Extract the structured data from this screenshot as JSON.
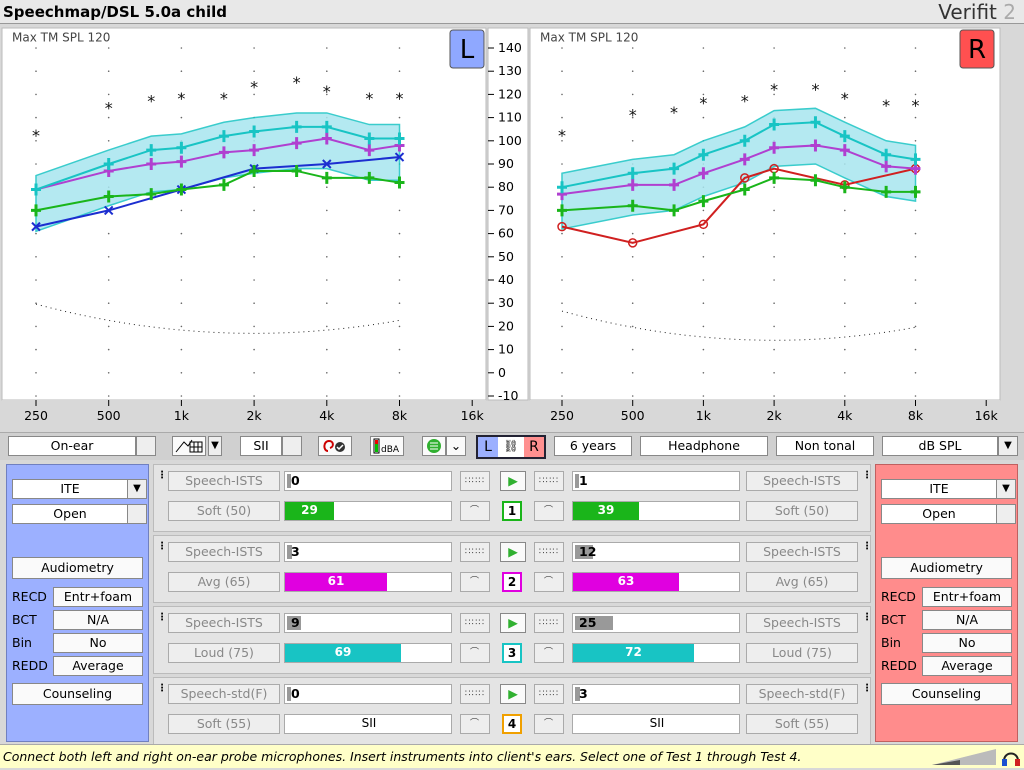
{
  "app_title": "Speechmap/DSL 5.0a child",
  "brand": {
    "name": "Verifit",
    "version": "2"
  },
  "charts": {
    "left": {
      "ear": "L",
      "max_label": "Max TM SPL 120"
    },
    "right": {
      "ear": "R",
      "max_label": "Max TM SPL 120"
    },
    "x_ticks": [
      "250",
      "500",
      "1k",
      "2k",
      "4k",
      "8k",
      "16k"
    ],
    "y_ticks": [
      "140",
      "130",
      "120",
      "110",
      "100",
      "90",
      "80",
      "70",
      "60",
      "50",
      "40",
      "30",
      "20",
      "10",
      "0",
      "-10"
    ]
  },
  "toolbar": {
    "mode": "On-ear",
    "sii_label": "SII",
    "dba_label": "dBA",
    "link_left": "L",
    "link_right": "R",
    "age": "6 years",
    "transducer": "Headphone",
    "tonal": "Non tonal",
    "units": "dB SPL"
  },
  "left_panel": {
    "style": "ITE",
    "vent": "Open",
    "audiometry": "Audiometry",
    "recd_label": "RECD",
    "recd_value": "Entr+foam",
    "bct_label": "BCT",
    "bct_value": "N/A",
    "bin_label": "Bin",
    "bin_value": "No",
    "redd_label": "REDD",
    "redd_value": "Average",
    "counseling": "Counseling"
  },
  "right_panel": {
    "style": "ITE",
    "vent": "Open",
    "audiometry": "Audiometry",
    "recd_label": "RECD",
    "recd_value": "Entr+foam",
    "bct_label": "BCT",
    "bct_value": "N/A",
    "bin_label": "Bin",
    "bin_value": "No",
    "redd_label": "REDD",
    "redd_value": "Average",
    "counseling": "Counseling"
  },
  "tests": [
    {
      "num": "1",
      "color": "#1ab51a",
      "stim_l": "Speech-ISTS",
      "stim_r": "Speech-ISTS",
      "level_l": "Soft (50)",
      "level_r": "Soft (50)",
      "top_l": "0",
      "top_r": "1",
      "val_l": "29",
      "val_r": "39",
      "fill_l": 0.29,
      "fill_r": 0.39
    },
    {
      "num": "2",
      "color": "#e000e0",
      "stim_l": "Speech-ISTS",
      "stim_r": "Speech-ISTS",
      "level_l": "Avg (65)",
      "level_r": "Avg (65)",
      "top_l": "3",
      "top_r": "12",
      "val_l": "61",
      "val_r": "63",
      "fill_l": 0.61,
      "fill_r": 0.63
    },
    {
      "num": "3",
      "color": "#18c4c4",
      "stim_l": "Speech-ISTS",
      "stim_r": "Speech-ISTS",
      "level_l": "Loud (75)",
      "level_r": "Loud (75)",
      "top_l": "9",
      "top_r": "25",
      "val_l": "69",
      "val_r": "72",
      "fill_l": 0.69,
      "fill_r": 0.72
    },
    {
      "num": "4",
      "color": "#f0a000",
      "stim_l": "Speech-std(F)",
      "stim_r": "Speech-std(F)",
      "level_l": "Soft (55)",
      "level_r": "Soft (55)",
      "top_l": "0",
      "top_r": "3",
      "val_l": "SII",
      "val_r": "SII",
      "fill_l": 0,
      "fill_r": 0
    }
  ],
  "status": "Connect both left and right on-ear probe microphones.  Insert instruments into client's ears.  Select one of Test 1 through Test 4.",
  "chart_data": [
    {
      "type": "line",
      "title": "Max TM SPL 120",
      "ear": "left",
      "x": [
        250,
        500,
        750,
        1000,
        1500,
        2000,
        3000,
        4000,
        6000,
        8000
      ],
      "ylim": [
        -10,
        140
      ],
      "series": [
        {
          "name": "",
          "color": "#1c2ed0",
          "x": [
            250,
            500,
            1000,
            2000,
            4000,
            8000
          ],
          "values": [
            63,
            70,
            79,
            88,
            90,
            93
          ]
        },
        {
          "name": "",
          "color": "#111111",
          "x": [
            250,
            500,
            750,
            1000,
            1500,
            2000,
            3000,
            4000,
            6000,
            8000
          ],
          "values": [
            102,
            114,
            117,
            118,
            118,
            123,
            125,
            121,
            118,
            118
          ]
        },
        {
          "name": "",
          "color": "#1ab51a",
          "x": [
            250,
            500,
            750,
            1000,
            1500,
            2000,
            3000,
            4000,
            6000,
            8000
          ],
          "values": [
            70,
            76,
            77,
            79,
            81,
            87,
            87,
            84,
            84,
            82
          ]
        },
        {
          "name": "",
          "color": "#b040d0",
          "x": [
            250,
            500,
            750,
            1000,
            1500,
            2000,
            3000,
            4000,
            6000,
            8000
          ],
          "values": [
            79,
            87,
            90,
            91,
            95,
            96,
            99,
            101,
            96,
            98
          ]
        },
        {
          "name": "",
          "color": "#18c4c4",
          "x": [
            250,
            500,
            750,
            1000,
            1500,
            2000,
            3000,
            4000,
            6000,
            8000
          ],
          "values": [
            79,
            90,
            96,
            97,
            102,
            104,
            106,
            106,
            101,
            101
          ]
        }
      ]
    },
    {
      "type": "line",
      "title": "Max TM SPL 120",
      "ear": "right",
      "x": [
        250,
        500,
        750,
        1000,
        1500,
        2000,
        3000,
        4000,
        6000,
        8000
      ],
      "ylim": [
        -10,
        140
      ],
      "series": [
        {
          "name": "",
          "color": "#d02020",
          "x": [
            250,
            500,
            1000,
            1500,
            2000,
            4000,
            8000
          ],
          "values": [
            63,
            56,
            64,
            84,
            88,
            81,
            88
          ]
        },
        {
          "name": "",
          "color": "#111111",
          "x": [
            250,
            500,
            750,
            1000,
            1500,
            2000,
            3000,
            4000,
            6000,
            8000
          ],
          "values": [
            102,
            111,
            112,
            116,
            117,
            122,
            122,
            118,
            115,
            115
          ]
        },
        {
          "name": "",
          "color": "#1ab51a",
          "x": [
            250,
            500,
            750,
            1000,
            1500,
            2000,
            3000,
            4000,
            6000,
            8000
          ],
          "values": [
            70,
            72,
            70,
            74,
            79,
            84,
            83,
            80,
            78,
            78
          ]
        },
        {
          "name": "",
          "color": "#b040d0",
          "x": [
            250,
            500,
            750,
            1000,
            1500,
            2000,
            3000,
            4000,
            6000,
            8000
          ],
          "values": [
            77,
            81,
            81,
            86,
            92,
            97,
            98,
            96,
            89,
            88
          ]
        },
        {
          "name": "",
          "color": "#18c4c4",
          "x": [
            250,
            500,
            750,
            1000,
            1500,
            2000,
            3000,
            4000,
            6000,
            8000
          ],
          "values": [
            80,
            86,
            88,
            94,
            100,
            107,
            108,
            102,
            94,
            92
          ]
        }
      ]
    }
  ]
}
